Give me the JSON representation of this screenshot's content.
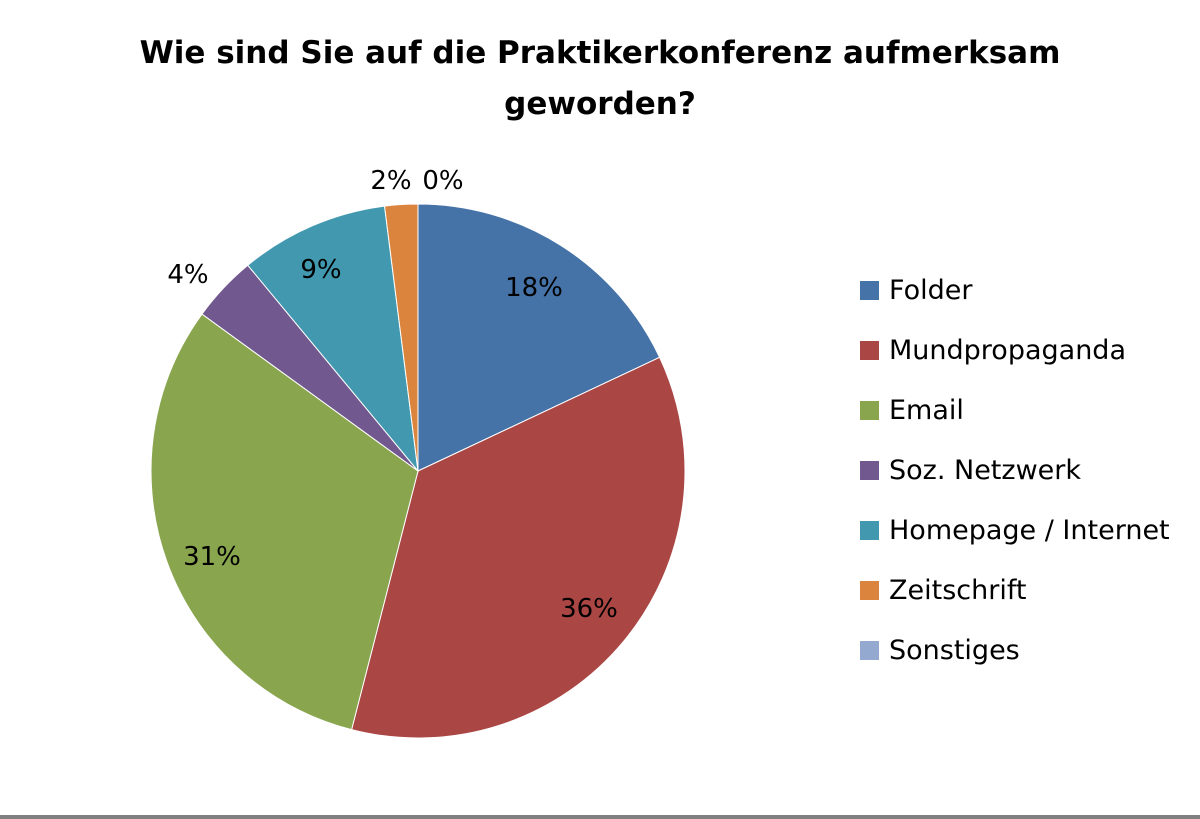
{
  "chart_data": {
    "type": "pie",
    "title_lines": [
      "Wie sind Sie auf die Praktikerkonferenz aufmerksam",
      "geworden?"
    ],
    "legend_position": "right",
    "slices": [
      {
        "name": "Folder",
        "value": 18,
        "label": "18%",
        "color": "#4572A7"
      },
      {
        "name": "Mundpropaganda",
        "value": 36,
        "label": "36%",
        "color": "#AA4643"
      },
      {
        "name": "Email",
        "value": 31,
        "label": "31%",
        "color": "#89A54E"
      },
      {
        "name": "Soz. Netzwerk",
        "value": 4,
        "label": "4%",
        "color": "#71588F"
      },
      {
        "name": "Homepage / Internet",
        "value": 9,
        "label": "9%",
        "color": "#4198AF"
      },
      {
        "name": "Zeitschrift",
        "value": 2,
        "label": "2%",
        "color": "#DB843D"
      },
      {
        "name": "Sonstiges",
        "value": 0,
        "label": "0%",
        "color": "#93A9CF"
      }
    ]
  }
}
